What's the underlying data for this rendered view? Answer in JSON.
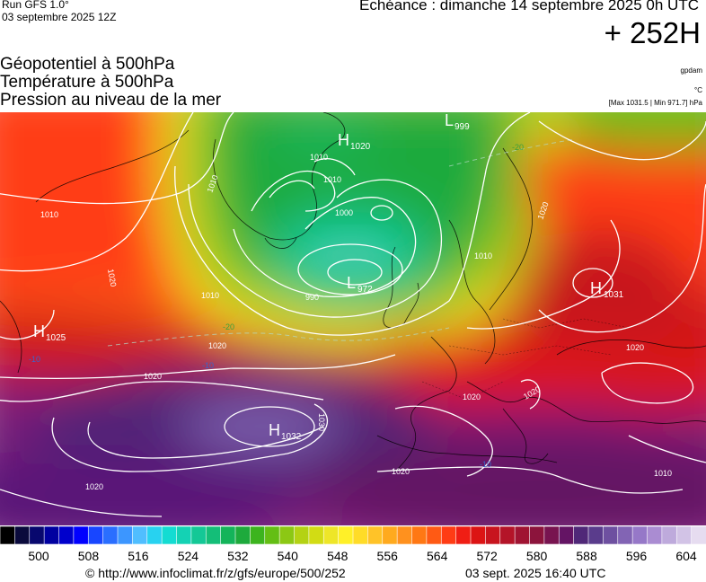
{
  "header": {
    "run_label": "Run GFS 1.0°",
    "run_date": "03 septembre 2025 12Z",
    "valid_label": "Echéance : dimanche 14 septembre 2025 0h UTC",
    "lead_hour": "+ 252H"
  },
  "titles": [
    "Géopotentiel à 500hPa",
    "Température à 500hPa",
    "Pression au niveau de la mer"
  ],
  "units": {
    "geopotential": "gpdam",
    "temperature": "°C",
    "pressure_minmax": "[Max 1031.5 | Min 971.7] hPa"
  },
  "pressure_centers": [
    {
      "type": "H",
      "value": "1020"
    },
    {
      "type": "L",
      "value": "999"
    },
    {
      "type": "L",
      "value": "972"
    },
    {
      "type": "H",
      "value": "1031"
    },
    {
      "type": "H",
      "value": "1025"
    },
    {
      "type": "H",
      "value": "1032"
    }
  ],
  "isobar_labels": [
    "1010",
    "1010",
    "1010",
    "1000",
    "990",
    "1010",
    "1020",
    "1010",
    "1020",
    "1020",
    "1020",
    "1020",
    "1020",
    "1020",
    "1020",
    "1030",
    "1010",
    "1020",
    "1010"
  ],
  "temperature_labels": [
    "-20",
    "-20",
    "-10",
    "-10",
    "-10"
  ],
  "legend": {
    "colors": [
      "#000000",
      "#0a0a3c",
      "#08086e",
      "#0000a0",
      "#0000cc",
      "#0000ff",
      "#1846ff",
      "#2a6eff",
      "#3c96ff",
      "#50beff",
      "#28d2f0",
      "#14dcd2",
      "#14d2b4",
      "#14c896",
      "#14be78",
      "#14b45a",
      "#1eaa3c",
      "#3cb41e",
      "#64be14",
      "#8cc814",
      "#b4d214",
      "#d2dc14",
      "#eee628",
      "#fff028",
      "#ffdc28",
      "#ffc328",
      "#ffaa1e",
      "#ff911e",
      "#ff7814",
      "#ff5a14",
      "#ff3c14",
      "#f01e14",
      "#dc1414",
      "#c8141e",
      "#b41428",
      "#a01432",
      "#8c143c",
      "#781450",
      "#641464",
      "#502878",
      "#5a3c8c",
      "#6e50a0",
      "#8264b4",
      "#9678c8",
      "#aa8cd2",
      "#beaadc",
      "#d2c3e6",
      "#e6dcf0"
    ],
    "ticks": [
      "500",
      "508",
      "516",
      "524",
      "532",
      "540",
      "548",
      "556",
      "564",
      "572",
      "580",
      "588",
      "596",
      "604"
    ]
  },
  "footer": {
    "source": "© http://www.infoclimat.fr/z/gfs/europe/500/252",
    "generated": "03 sept. 2025 16:40 UTC"
  }
}
